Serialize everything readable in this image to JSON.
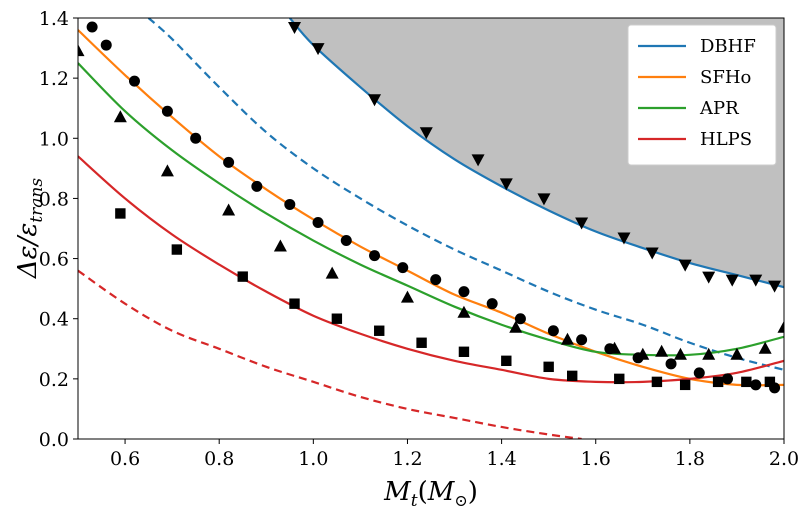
{
  "chart_data": {
    "type": "line",
    "xlabel": "M_t(M_⊙)",
    "ylabel": "Δε/ε_trans",
    "xlabel_parts": {
      "main": "M",
      "sub": "t",
      "paren_open": "(",
      "m": "M",
      "sun": "⊙",
      "paren_close": ")"
    },
    "ylabel_parts": {
      "main": "Δε/ε",
      "sub": "trans"
    },
    "xlim": [
      0.5,
      2.0
    ],
    "ylim": [
      0.0,
      1.4
    ],
    "x_ticks": [
      0.6,
      0.8,
      1.0,
      1.2,
      1.4,
      1.6,
      1.8,
      2.0
    ],
    "x_tick_labels": [
      "0.6",
      "0.8",
      "1.0",
      "1.2",
      "1.4",
      "1.6",
      "1.8",
      "2.0"
    ],
    "y_ticks": [
      0.0,
      0.2,
      0.4,
      0.6,
      0.8,
      1.0,
      1.2,
      1.4
    ],
    "y_tick_labels": [
      "0.0",
      "0.2",
      "0.4",
      "0.6",
      "0.8",
      "1.0",
      "1.2",
      "1.4"
    ],
    "legend_position": "top-right",
    "shaded_region": {
      "name": "excluded",
      "color": "#c0c0c0",
      "bounded_below_by": "DBHF"
    },
    "series": [
      {
        "name": "DBHF",
        "label": "DBHF",
        "color": "#1f77b4",
        "style": "solid",
        "x": [
          0.95,
          1.0,
          1.1,
          1.2,
          1.3,
          1.4,
          1.5,
          1.6,
          1.7,
          1.8,
          1.9,
          2.0
        ],
        "y": [
          1.4,
          1.31,
          1.17,
          1.04,
          0.93,
          0.84,
          0.76,
          0.69,
          0.635,
          0.585,
          0.545,
          0.505
        ]
      },
      {
        "name": "DBHF-dashed",
        "label": "",
        "color": "#1f77b4",
        "style": "dashed",
        "x": [
          0.65,
          0.7,
          0.8,
          0.9,
          1.0,
          1.1,
          1.2,
          1.3,
          1.4,
          1.5,
          1.6,
          1.7,
          1.8,
          1.9,
          2.0
        ],
        "y": [
          1.4,
          1.33,
          1.17,
          1.02,
          0.9,
          0.8,
          0.71,
          0.63,
          0.56,
          0.49,
          0.43,
          0.38,
          0.32,
          0.27,
          0.23
        ]
      },
      {
        "name": "SFHo",
        "label": "SFHo",
        "color": "#ff7f0e",
        "style": "solid",
        "x": [
          0.5,
          0.6,
          0.7,
          0.8,
          0.9,
          1.0,
          1.1,
          1.2,
          1.3,
          1.4,
          1.5,
          1.6,
          1.7,
          1.8,
          1.9,
          2.0
        ],
        "y": [
          1.36,
          1.21,
          1.07,
          0.94,
          0.83,
          0.73,
          0.64,
          0.56,
          0.48,
          0.42,
          0.35,
          0.29,
          0.24,
          0.2,
          0.18,
          0.18
        ]
      },
      {
        "name": "APR",
        "label": "APR",
        "color": "#2ca02c",
        "style": "solid",
        "x": [
          0.5,
          0.6,
          0.7,
          0.8,
          0.9,
          1.0,
          1.1,
          1.2,
          1.3,
          1.4,
          1.5,
          1.6,
          1.7,
          1.8,
          1.9,
          2.0
        ],
        "y": [
          1.25,
          1.09,
          0.96,
          0.85,
          0.75,
          0.66,
          0.58,
          0.51,
          0.44,
          0.38,
          0.33,
          0.29,
          0.28,
          0.28,
          0.3,
          0.34
        ]
      },
      {
        "name": "HLPS",
        "label": "HLPS",
        "color": "#d62728",
        "style": "solid",
        "x": [
          0.5,
          0.6,
          0.7,
          0.8,
          0.9,
          1.0,
          1.1,
          1.2,
          1.3,
          1.4,
          1.5,
          1.6,
          1.7,
          1.8,
          1.9,
          2.0
        ],
        "y": [
          0.94,
          0.8,
          0.68,
          0.58,
          0.49,
          0.41,
          0.35,
          0.3,
          0.26,
          0.23,
          0.2,
          0.19,
          0.19,
          0.2,
          0.22,
          0.26
        ]
      },
      {
        "name": "HLPS-dashed",
        "label": "",
        "color": "#d62728",
        "style": "dashed",
        "x": [
          0.5,
          0.6,
          0.7,
          0.8,
          0.9,
          1.0,
          1.1,
          1.2,
          1.3,
          1.4,
          1.5,
          1.57
        ],
        "y": [
          0.56,
          0.45,
          0.36,
          0.3,
          0.24,
          0.19,
          0.14,
          0.1,
          0.07,
          0.04,
          0.015,
          0.0
        ]
      }
    ],
    "markers": [
      {
        "name": "circles",
        "shape": "circle",
        "color": "#000000",
        "x": [
          0.53,
          0.56,
          0.62,
          0.69,
          0.75,
          0.82,
          0.88,
          0.95,
          1.01,
          1.07,
          1.13,
          1.19,
          1.26,
          1.32,
          1.38,
          1.44,
          1.51,
          1.57,
          1.63,
          1.69,
          1.76,
          1.82,
          1.88,
          1.94,
          1.98
        ],
        "y": [
          1.37,
          1.31,
          1.19,
          1.09,
          1.0,
          0.92,
          0.84,
          0.78,
          0.72,
          0.66,
          0.61,
          0.57,
          0.53,
          0.49,
          0.45,
          0.4,
          0.36,
          0.33,
          0.3,
          0.27,
          0.25,
          0.22,
          0.2,
          0.18,
          0.17
        ]
      },
      {
        "name": "triangles-up",
        "shape": "triangle-up",
        "color": "#000000",
        "x": [
          0.5,
          0.59,
          0.69,
          0.82,
          0.93,
          1.04,
          1.2,
          1.32,
          1.43,
          1.54,
          1.64,
          1.7,
          1.74,
          1.78,
          1.84,
          1.9,
          1.96,
          2.0
        ],
        "y": [
          1.29,
          1.07,
          0.89,
          0.76,
          0.64,
          0.55,
          0.47,
          0.42,
          0.37,
          0.33,
          0.3,
          0.28,
          0.29,
          0.28,
          0.28,
          0.28,
          0.3,
          0.37
        ]
      },
      {
        "name": "squares",
        "shape": "square",
        "color": "#000000",
        "x": [
          0.59,
          0.71,
          0.85,
          0.96,
          1.05,
          1.14,
          1.23,
          1.32,
          1.41,
          1.5,
          1.55,
          1.65,
          1.73,
          1.79,
          1.86,
          1.92,
          1.97
        ],
        "y": [
          0.75,
          0.63,
          0.54,
          0.45,
          0.4,
          0.36,
          0.32,
          0.29,
          0.26,
          0.24,
          0.21,
          0.2,
          0.19,
          0.18,
          0.19,
          0.19,
          0.19
        ]
      },
      {
        "name": "triangles-down",
        "shape": "triangle-down",
        "color": "#000000",
        "x": [
          0.96,
          1.01,
          1.13,
          1.24,
          1.35,
          1.41,
          1.49,
          1.57,
          1.66,
          1.72,
          1.79,
          1.84,
          1.89,
          1.94,
          1.98
        ],
        "y": [
          1.37,
          1.3,
          1.13,
          1.02,
          0.93,
          0.85,
          0.8,
          0.72,
          0.67,
          0.62,
          0.58,
          0.54,
          0.53,
          0.53,
          0.51
        ]
      }
    ]
  }
}
